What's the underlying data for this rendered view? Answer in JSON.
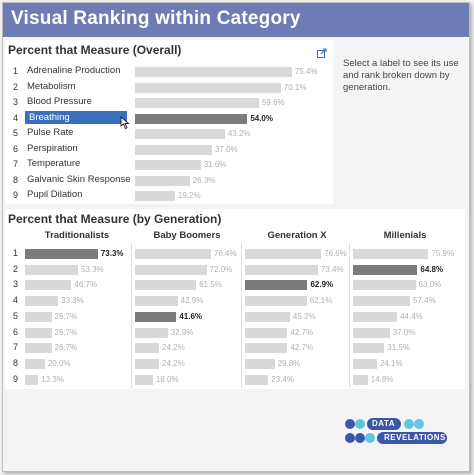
{
  "title": "Visual Ranking within Category",
  "overall": {
    "title": "Percent that Measure (Overall)",
    "rows": [
      {
        "rank": "1",
        "label": "Adrenaline Production",
        "value": "75.4%",
        "pct": 75.4,
        "selected": false
      },
      {
        "rank": "2",
        "label": "Metabolism",
        "value": "70.1%",
        "pct": 70.1,
        "selected": false
      },
      {
        "rank": "3",
        "label": "Blood Pressure",
        "value": "59.6%",
        "pct": 59.6,
        "selected": false
      },
      {
        "rank": "4",
        "label": "Breathing",
        "value": "54.0%",
        "pct": 54.0,
        "selected": true
      },
      {
        "rank": "5",
        "label": "Pulse Rate",
        "value": "43.2%",
        "pct": 43.2,
        "selected": false
      },
      {
        "rank": "6",
        "label": "Perspiration",
        "value": "37.0%",
        "pct": 37.0,
        "selected": false
      },
      {
        "rank": "7",
        "label": "Temperature",
        "value": "31.6%",
        "pct": 31.6,
        "selected": false
      },
      {
        "rank": "8",
        "label": "Galvanic Skin Response",
        "value": "26.3%",
        "pct": 26.3,
        "selected": false
      },
      {
        "rank": "9",
        "label": "Pupil Dilation",
        "value": "19.2%",
        "pct": 19.2,
        "selected": false
      }
    ]
  },
  "note": "Select a label to see its use and rank broken down by generation.",
  "generation": {
    "title": "Percent that Measure (by Generation)",
    "ranks": [
      "1",
      "2",
      "3",
      "4",
      "5",
      "6",
      "7",
      "8",
      "9"
    ],
    "columns": [
      {
        "name": "Traditionalists",
        "values": [
          {
            "v": "73.3%",
            "p": 73.3,
            "hl": true
          },
          {
            "v": "53.3%",
            "p": 53.3,
            "hl": false
          },
          {
            "v": "46.7%",
            "p": 46.7,
            "hl": false
          },
          {
            "v": "33.3%",
            "p": 33.3,
            "hl": false
          },
          {
            "v": "26.7%",
            "p": 26.7,
            "hl": false
          },
          {
            "v": "26.7%",
            "p": 26.7,
            "hl": false
          },
          {
            "v": "26.7%",
            "p": 26.7,
            "hl": false
          },
          {
            "v": "20.0%",
            "p": 20.0,
            "hl": false
          },
          {
            "v": "13.3%",
            "p": 13.3,
            "hl": false
          }
        ]
      },
      {
        "name": "Baby Boomers",
        "values": [
          {
            "v": "76.4%",
            "p": 76.4,
            "hl": false
          },
          {
            "v": "72.0%",
            "p": 72.0,
            "hl": false
          },
          {
            "v": "61.5%",
            "p": 61.5,
            "hl": false
          },
          {
            "v": "42.9%",
            "p": 42.9,
            "hl": false
          },
          {
            "v": "41.6%",
            "p": 41.6,
            "hl": true
          },
          {
            "v": "32.9%",
            "p": 32.9,
            "hl": false
          },
          {
            "v": "24.2%",
            "p": 24.2,
            "hl": false
          },
          {
            "v": "24.2%",
            "p": 24.2,
            "hl": false
          },
          {
            "v": "18.0%",
            "p": 18.0,
            "hl": false
          }
        ]
      },
      {
        "name": "Generation X",
        "values": [
          {
            "v": "76.6%",
            "p": 76.6,
            "hl": false
          },
          {
            "v": "73.4%",
            "p": 73.4,
            "hl": false
          },
          {
            "v": "62.9%",
            "p": 62.9,
            "hl": true
          },
          {
            "v": "62.1%",
            "p": 62.1,
            "hl": false
          },
          {
            "v": "45.2%",
            "p": 45.2,
            "hl": false
          },
          {
            "v": "42.7%",
            "p": 42.7,
            "hl": false
          },
          {
            "v": "42.7%",
            "p": 42.7,
            "hl": false
          },
          {
            "v": "29.8%",
            "p": 29.8,
            "hl": false
          },
          {
            "v": "23.4%",
            "p": 23.4,
            "hl": false
          }
        ]
      },
      {
        "name": "Millenials",
        "values": [
          {
            "v": "75.9%",
            "p": 75.9,
            "hl": false
          },
          {
            "v": "64.8%",
            "p": 64.8,
            "hl": true
          },
          {
            "v": "63.0%",
            "p": 63.0,
            "hl": false
          },
          {
            "v": "57.4%",
            "p": 57.4,
            "hl": false
          },
          {
            "v": "44.4%",
            "p": 44.4,
            "hl": false
          },
          {
            "v": "37.0%",
            "p": 37.0,
            "hl": false
          },
          {
            "v": "31.5%",
            "p": 31.5,
            "hl": false
          },
          {
            "v": "24.1%",
            "p": 24.1,
            "hl": false
          },
          {
            "v": "14.8%",
            "p": 14.8,
            "hl": false
          }
        ]
      }
    ]
  },
  "logo": {
    "line1": "DATA",
    "line2": "REVELATIONS"
  },
  "icons": {
    "expand": "expand-icon",
    "cursor": "pointer-cursor-icon"
  },
  "colors": {
    "title_bg": "#6e7cb5",
    "selected_label": "#3a6fbf",
    "highlight_bar": "#7b7b7b",
    "bar": "#d9d9d9",
    "logo_blue": "#3a57a8",
    "logo_cyan": "#5fc4e8"
  }
}
